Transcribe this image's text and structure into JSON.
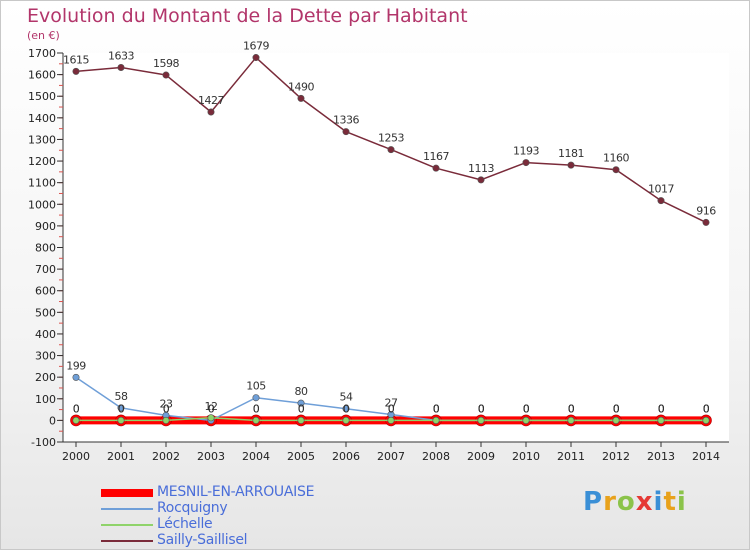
{
  "title": "Evolution du Montant de la Dette par Habitant",
  "unit_label": "(en €)",
  "brand": {
    "text": "Proxiti",
    "letters": [
      {
        "ch": "P",
        "color": "#3a8fd6"
      },
      {
        "ch": "r",
        "color": "#e8a21c"
      },
      {
        "ch": "o",
        "color": "#8bc34a"
      },
      {
        "ch": "x",
        "color": "#e53935"
      },
      {
        "ch": "i",
        "color": "#3a8fd6"
      },
      {
        "ch": "t",
        "color": "#e8a21c"
      },
      {
        "ch": "i",
        "color": "#8bc34a"
      }
    ]
  },
  "chart_data": {
    "type": "line",
    "x": [
      "2000",
      "2001",
      "2002",
      "2003",
      "2004",
      "2005",
      "2006",
      "2007",
      "2008",
      "2009",
      "2010",
      "2011",
      "2012",
      "2013",
      "2014"
    ],
    "ylim": [
      -100,
      1700
    ],
    "yticks": [
      -100,
      0,
      100,
      200,
      300,
      400,
      500,
      600,
      700,
      800,
      900,
      1000,
      1100,
      1200,
      1300,
      1400,
      1500,
      1600,
      1700
    ],
    "grid": false,
    "legend_position": "bottom-left",
    "series": [
      {
        "name": "MESNIL-EN-ARROUAISE",
        "color": "#ff0000",
        "values": [
          0,
          0,
          0,
          0,
          0,
          0,
          0,
          0,
          0,
          0,
          0,
          0,
          0,
          0,
          0
        ],
        "labels": [
          "0",
          "0",
          "0",
          "0",
          "0",
          "0",
          "0",
          "0",
          "0",
          "0",
          "0",
          "0",
          "0",
          "0",
          "0"
        ]
      },
      {
        "name": "Rocquigny",
        "color": "#6f9fd8",
        "values": [
          199,
          58,
          23,
          0,
          105,
          80,
          54,
          27,
          0,
          0,
          0,
          0,
          0,
          0,
          0
        ],
        "labels": [
          "199",
          "58",
          "23",
          "0",
          "105",
          "80",
          "54",
          "27",
          "0",
          "0",
          "0",
          "0",
          "0",
          "0",
          "0"
        ]
      },
      {
        "name": "Léchelle",
        "color": "#8fd36a",
        "values": [
          0,
          0,
          0,
          12,
          0,
          0,
          0,
          0,
          0,
          0,
          0,
          0,
          0,
          0,
          0
        ],
        "labels": [
          "0",
          "0",
          "0",
          "12",
          "0",
          "0",
          "0",
          "0",
          "0",
          "0",
          "0",
          "0",
          "0",
          "0",
          "0"
        ]
      },
      {
        "name": "Sailly-Saillisel",
        "color": "#7a2b3a",
        "values": [
          1615,
          1633,
          1598,
          1427,
          1679,
          1490,
          1336,
          1253,
          1167,
          1113,
          1193,
          1181,
          1160,
          1017,
          916
        ],
        "labels": [
          "1615",
          "1633",
          "1598",
          "1427",
          "1679",
          "1490",
          "1336",
          "1253",
          "1167",
          "1113",
          "1193",
          "1181",
          "1160",
          "1017",
          "916"
        ]
      }
    ]
  }
}
